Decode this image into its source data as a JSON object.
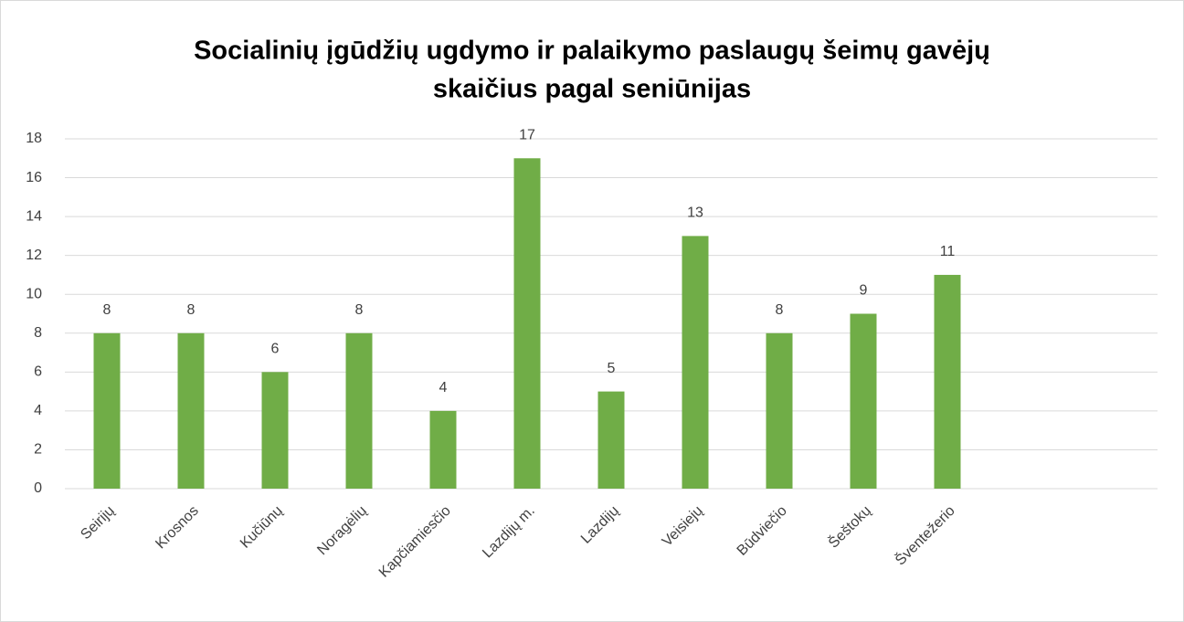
{
  "chart_data": {
    "type": "bar",
    "title": [
      "Socialinių įgūdžių ugdymo ir palaikymo paslaugų šeimų  gavėjų",
      "skaičius pagal seniūnijas"
    ],
    "categories": [
      "Seirijų",
      "Krosnos",
      "Kučiūnų",
      "Noragėlių",
      "Kapčiamiesčio",
      "Lazdijų m.",
      "Lazdijų",
      "Veisiejų",
      "Būdviečio",
      "Šeštokų",
      "Šventežerio",
      null,
      null
    ],
    "values": [
      8,
      8,
      6,
      8,
      4,
      17,
      5,
      13,
      8,
      9,
      11,
      null,
      null
    ],
    "color": "#70ad47",
    "ylim": [
      0,
      18
    ],
    "yticks": [
      0,
      2,
      4,
      6,
      8,
      10,
      12,
      14,
      16,
      18
    ],
    "grid": true
  }
}
